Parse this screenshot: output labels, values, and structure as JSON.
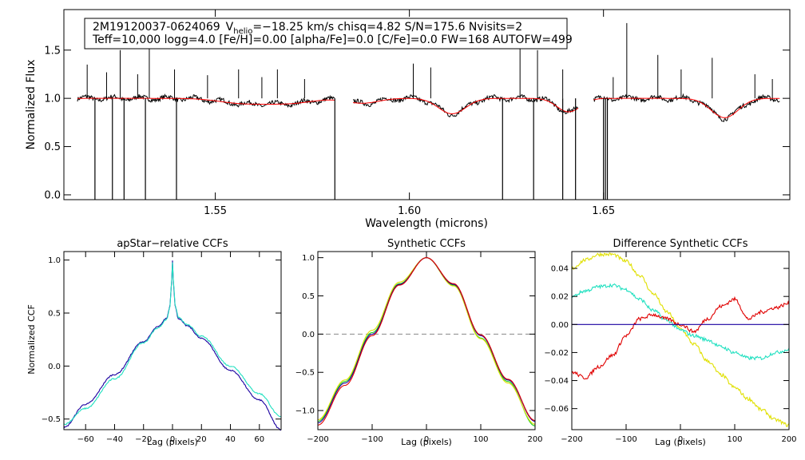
{
  "legend": {
    "star_id": "2M19120037-0624069",
    "vhelio_label": "V",
    "vhelio_sub": "helio",
    "line1_rest": "=−18.25 km/s  chisq=4.82  S/N=175.6  Nvisits=2",
    "line2": "Teff=10,000 logg=4.0 [Fe/H]=0.00 [alpha/Fe]=0.0 [C/Fe]=0.0 FW=168 AUTOFW=499"
  },
  "colors": {
    "data": "#000000",
    "model": "#ff0000",
    "ccf_blue": "#1a00a0",
    "ccf_cyan": "#20e0c0",
    "green": "#20d020",
    "yellow": "#e0e000",
    "red": "#e00000",
    "navy": "#1a00a0"
  },
  "chart_data": [
    {
      "id": "spectrum",
      "type": "line",
      "title": "",
      "xlabel": "Wavelength (microns)",
      "ylabel": "Normalized Flux",
      "xlim": [
        1.511,
        1.698
      ],
      "ylim": [
        -0.05,
        1.92
      ],
      "xticks": [
        1.55,
        1.6,
        1.65
      ],
      "xtick_labels": [
        "1.55",
        "1.60",
        "1.65"
      ],
      "yticks": [
        0.0,
        0.5,
        1.0,
        1.5
      ],
      "ytick_labels": [
        "0.0",
        "0.5",
        "1.0",
        "1.5"
      ],
      "chips": [
        [
          1.5145,
          1.5808
        ],
        [
          1.5855,
          1.6435
        ],
        [
          1.6475,
          1.6955
        ]
      ],
      "absorption": [
        {
          "center": 1.557,
          "depth": 0.05,
          "width": 0.006
        },
        {
          "center": 1.569,
          "depth": 0.05,
          "width": 0.006
        },
        {
          "center": 1.588,
          "depth": 0.05,
          "width": 0.004
        },
        {
          "center": 1.611,
          "depth": 0.16,
          "width": 0.0035
        },
        {
          "center": 1.641,
          "depth": 0.14,
          "width": 0.003
        },
        {
          "center": 1.6812,
          "depth": 0.2,
          "width": 0.0035
        }
      ],
      "spikes_up": [
        1.517,
        1.522,
        1.5255,
        1.53,
        1.533,
        1.5395,
        1.548,
        1.556,
        1.562,
        1.566,
        1.573,
        1.601,
        1.6055,
        1.6285,
        1.633,
        1.6395,
        1.6525,
        1.656,
        1.664,
        1.67,
        1.678,
        1.689,
        1.6935
      ],
      "spikes_up_height": [
        0.35,
        0.27,
        0.5,
        0.25,
        0.63,
        0.3,
        0.24,
        0.3,
        0.22,
        0.3,
        0.2,
        0.36,
        0.32,
        0.75,
        0.5,
        0.3,
        0.22,
        0.78,
        0.45,
        0.3,
        0.42,
        0.25,
        0.2
      ],
      "spikes_down": [
        1.519,
        1.5235,
        1.5265,
        1.532,
        1.54,
        1.5808,
        1.624,
        1.632,
        1.6395,
        1.6428,
        1.65,
        1.6505,
        1.651
      ],
      "spikes_down_bottom": [
        -0.05,
        -0.05,
        -0.05,
        -0.05,
        -0.05,
        -0.05,
        -0.05,
        -0.05,
        -0.05,
        -0.05,
        -0.05,
        -0.05,
        -0.05
      ]
    },
    {
      "id": "apstar_ccf",
      "type": "line",
      "title": "apStar−relative CCFs",
      "xlabel": "Lag (pixels)",
      "ylabel": "Normalized CCF",
      "xlim": [
        -75,
        75
      ],
      "ylim": [
        -0.6,
        1.08
      ],
      "xticks": [
        -60,
        -40,
        -20,
        0,
        20,
        40,
        60
      ],
      "xtick_labels": [
        "−60",
        "−40",
        "−20",
        "0",
        "20",
        "40",
        "60"
      ],
      "yticks": [
        -0.5,
        0.0,
        0.5,
        1.0
      ],
      "ytick_labels": [
        "−0.5",
        "0.0",
        "0.5",
        "1.0"
      ],
      "series": [
        {
          "name": "visit 1",
          "color": "ccf_blue",
          "x": [
            -75,
            -60,
            -40,
            -20,
            -10,
            -4,
            -2,
            -1,
            0,
            1,
            2,
            4,
            10,
            20,
            40,
            60,
            75
          ],
          "y": [
            -0.58,
            -0.36,
            -0.08,
            0.23,
            0.37,
            0.45,
            0.55,
            0.7,
            1.0,
            0.7,
            0.55,
            0.45,
            0.38,
            0.26,
            -0.04,
            -0.32,
            -0.6
          ]
        },
        {
          "name": "visit 2",
          "color": "ccf_cyan",
          "x": [
            -75,
            -60,
            -40,
            -20,
            -10,
            -4,
            -2,
            -1,
            0,
            1,
            2,
            4,
            10,
            20,
            40,
            60,
            75
          ],
          "y": [
            -0.55,
            -0.4,
            -0.12,
            0.22,
            0.36,
            0.44,
            0.54,
            0.7,
            0.98,
            0.72,
            0.56,
            0.46,
            0.39,
            0.28,
            0.0,
            -0.26,
            -0.48
          ]
        }
      ]
    },
    {
      "id": "synthetic_ccf",
      "type": "line",
      "title": "Synthetic CCFs",
      "xlabel": "Lag (pixels)",
      "ylabel": "",
      "xlim": [
        -200,
        200
      ],
      "ylim": [
        -1.25,
        1.08
      ],
      "xticks": [
        -200,
        -100,
        0,
        100,
        200
      ],
      "xtick_labels": [
        "−200",
        "−100",
        "0",
        "100",
        "200"
      ],
      "yticks": [
        -1.0,
        -0.5,
        0.0,
        0.5,
        1.0
      ],
      "ytick_labels": [
        "−1.0",
        "−0.5",
        "0.0",
        "0.5",
        "1.0"
      ],
      "zero_line": true,
      "series": [
        {
          "name": "green",
          "color": "green",
          "x": [
            -200,
            -150,
            -100,
            -50,
            0,
            50,
            100,
            150,
            200
          ],
          "y": [
            -1.14,
            -0.62,
            0.02,
            0.66,
            1.0,
            0.64,
            -0.05,
            -0.62,
            -1.2
          ]
        },
        {
          "name": "yellow",
          "color": "yellow",
          "x": [
            -200,
            -150,
            -100,
            -50,
            0,
            50,
            100,
            150,
            200
          ],
          "y": [
            -1.12,
            -0.6,
            0.05,
            0.68,
            1.0,
            0.63,
            -0.06,
            -0.64,
            -1.18
          ]
        },
        {
          "name": "blue",
          "color": "navy",
          "x": [
            -200,
            -150,
            -100,
            -50,
            0,
            50,
            100,
            150,
            200
          ],
          "y": [
            -1.16,
            -0.64,
            0.0,
            0.65,
            1.0,
            0.65,
            -0.02,
            -0.6,
            -1.14
          ]
        },
        {
          "name": "red",
          "color": "red",
          "x": [
            -200,
            -150,
            -100,
            -50,
            0,
            50,
            100,
            150,
            200
          ],
          "y": [
            -1.19,
            -0.67,
            -0.02,
            0.64,
            1.0,
            0.66,
            -0.01,
            -0.59,
            -1.13
          ]
        }
      ]
    },
    {
      "id": "difference_ccf",
      "type": "line",
      "title": "Difference Synthetic CCFs",
      "xlabel": "Lag (pixels)",
      "ylabel": "",
      "xlim": [
        -200,
        200
      ],
      "ylim": [
        -0.075,
        0.052
      ],
      "xticks": [
        -200,
        -100,
        0,
        100,
        200
      ],
      "xtick_labels": [
        "−200",
        "−100",
        "0",
        "100",
        "200"
      ],
      "yticks": [
        -0.06,
        -0.04,
        -0.02,
        0.0,
        0.02,
        0.04
      ],
      "ytick_labels": [
        "−0.06",
        "−0.04",
        "−0.02",
        "0.00",
        "0.02",
        "0.04"
      ],
      "series": [
        {
          "name": "yellow",
          "color": "yellow",
          "x": [
            -200,
            -175,
            -150,
            -125,
            -100,
            -75,
            -50,
            -25,
            0,
            25,
            50,
            75,
            100,
            125,
            150,
            175,
            200
          ],
          "y": [
            0.04,
            0.046,
            0.05,
            0.05,
            0.045,
            0.035,
            0.022,
            0.009,
            -0.003,
            -0.014,
            -0.026,
            -0.036,
            -0.045,
            -0.053,
            -0.061,
            -0.068,
            -0.072
          ]
        },
        {
          "name": "cyan",
          "color": "ccf_cyan",
          "x": [
            -200,
            -175,
            -150,
            -125,
            -100,
            -75,
            -50,
            -25,
            0,
            25,
            50,
            75,
            100,
            125,
            150,
            175,
            200
          ],
          "y": [
            0.02,
            0.024,
            0.027,
            0.028,
            0.025,
            0.018,
            0.01,
            0.003,
            -0.004,
            -0.008,
            -0.011,
            -0.016,
            -0.02,
            -0.024,
            -0.024,
            -0.02,
            -0.018
          ]
        },
        {
          "name": "red",
          "color": "red",
          "x": [
            -200,
            -175,
            -150,
            -125,
            -100,
            -75,
            -50,
            -25,
            0,
            25,
            50,
            75,
            100,
            125,
            150,
            175,
            200
          ],
          "y": [
            -0.034,
            -0.038,
            -0.03,
            -0.022,
            -0.008,
            0.004,
            0.007,
            0.004,
            0.0,
            -0.005,
            0.004,
            0.013,
            0.018,
            0.004,
            0.009,
            0.012,
            0.015
          ]
        },
        {
          "name": "navy",
          "color": "navy",
          "x": [
            -200,
            200
          ],
          "y": [
            0.0,
            0.0
          ]
        }
      ]
    }
  ]
}
